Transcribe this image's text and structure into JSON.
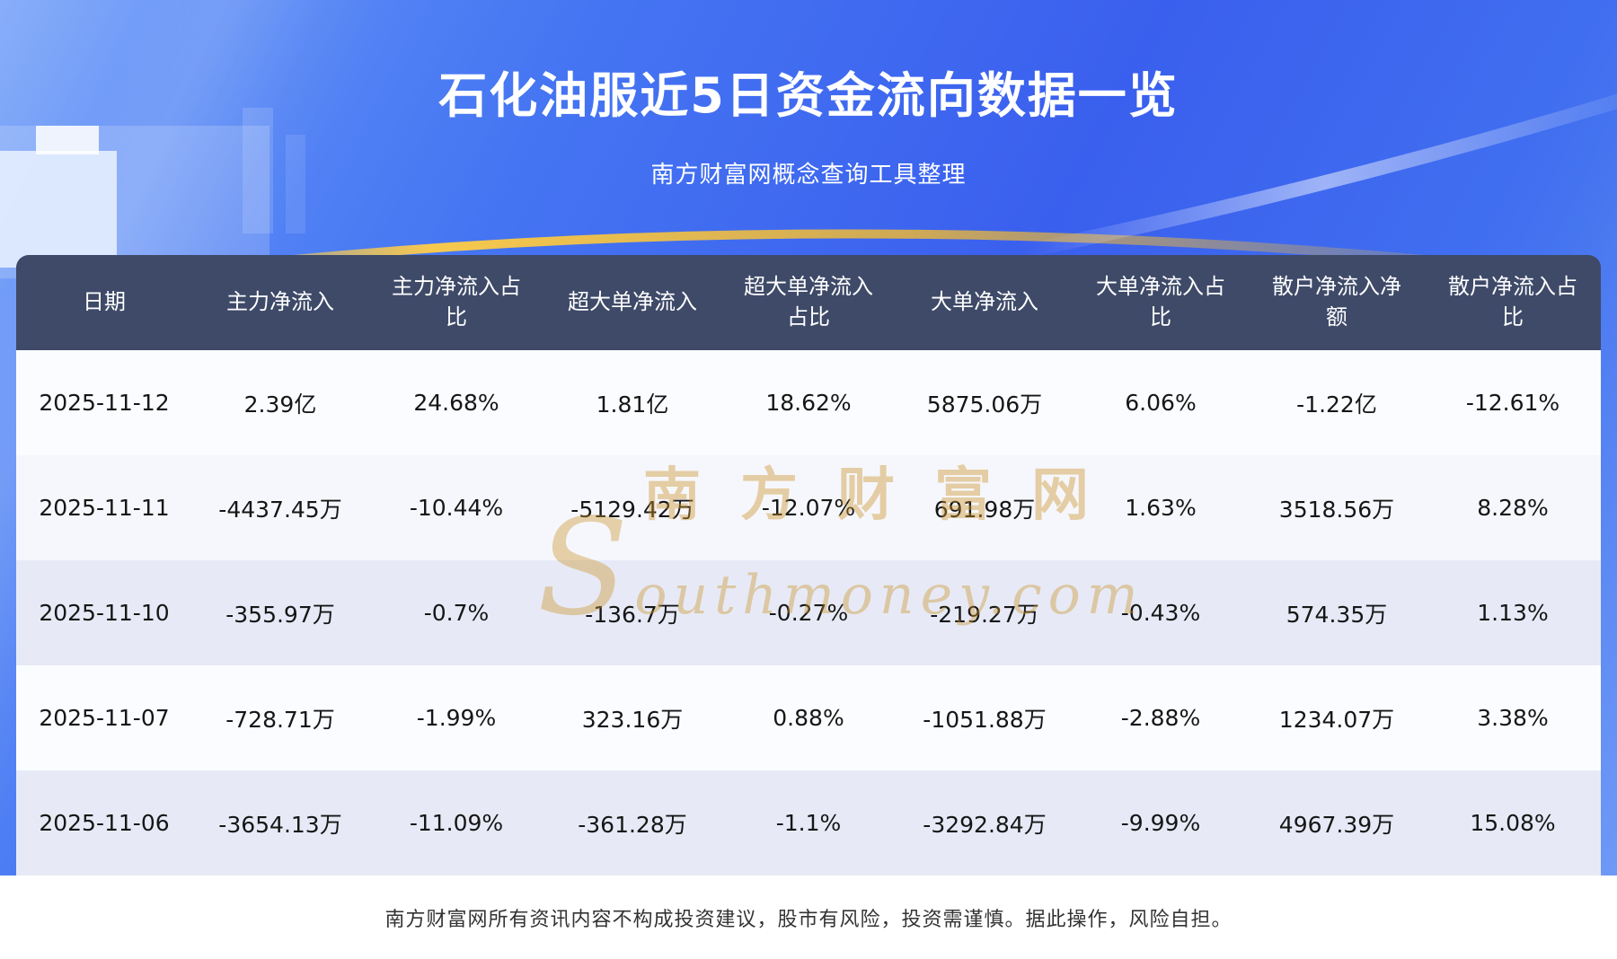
{
  "page": {
    "title": "石化油服近5日资金流向数据一览",
    "subtitle": "南方财富网概念查询工具整理",
    "footer": "南方财富网所有资讯内容不构成投资建议，股市有风险，投资需谨慎。据此操作，风险自担。"
  },
  "watermark": {
    "cn": "南方财富网",
    "en": "Southmoney.com"
  },
  "chart_data": {
    "type": "table",
    "title": "石化油服近5日资金流向数据一览",
    "columns": [
      "日期",
      "主力净流入",
      "主力净流入占比",
      "超大单净流入",
      "超大单净流入占比",
      "大单净流入",
      "大单净流入占比",
      "散户净流入净额",
      "散户净流入占比"
    ],
    "rows": [
      [
        "2025-11-12",
        "2.39亿",
        "24.68%",
        "1.81亿",
        "18.62%",
        "5875.06万",
        "6.06%",
        "-1.22亿",
        "-12.61%"
      ],
      [
        "2025-11-11",
        "-4437.45万",
        "-10.44%",
        "-5129.42万",
        "-12.07%",
        "691.98万",
        "1.63%",
        "3518.56万",
        "8.28%"
      ],
      [
        "2025-11-10",
        "-355.97万",
        "-0.7%",
        "-136.7万",
        "-0.27%",
        "-219.27万",
        "-0.43%",
        "574.35万",
        "1.13%"
      ],
      [
        "2025-11-07",
        "-728.71万",
        "-1.99%",
        "323.16万",
        "0.88%",
        "-1051.88万",
        "-2.88%",
        "1234.07万",
        "3.38%"
      ],
      [
        "2025-11-06",
        "-3654.13万",
        "-11.09%",
        "-361.28万",
        "-1.1%",
        "-3292.84万",
        "-9.99%",
        "4967.39万",
        "15.08%"
      ]
    ]
  },
  "colors": {
    "background_blue": "#3f68ef",
    "header_bg": "#3e4a68",
    "row_alt": "#e7eaf6",
    "row_white": "#fbfcff",
    "accent_gold": "#f5c242",
    "watermark_gold": "#ca942a",
    "title_text": "#ffffff",
    "cell_text": "#161616",
    "footer_text": "#333333"
  }
}
